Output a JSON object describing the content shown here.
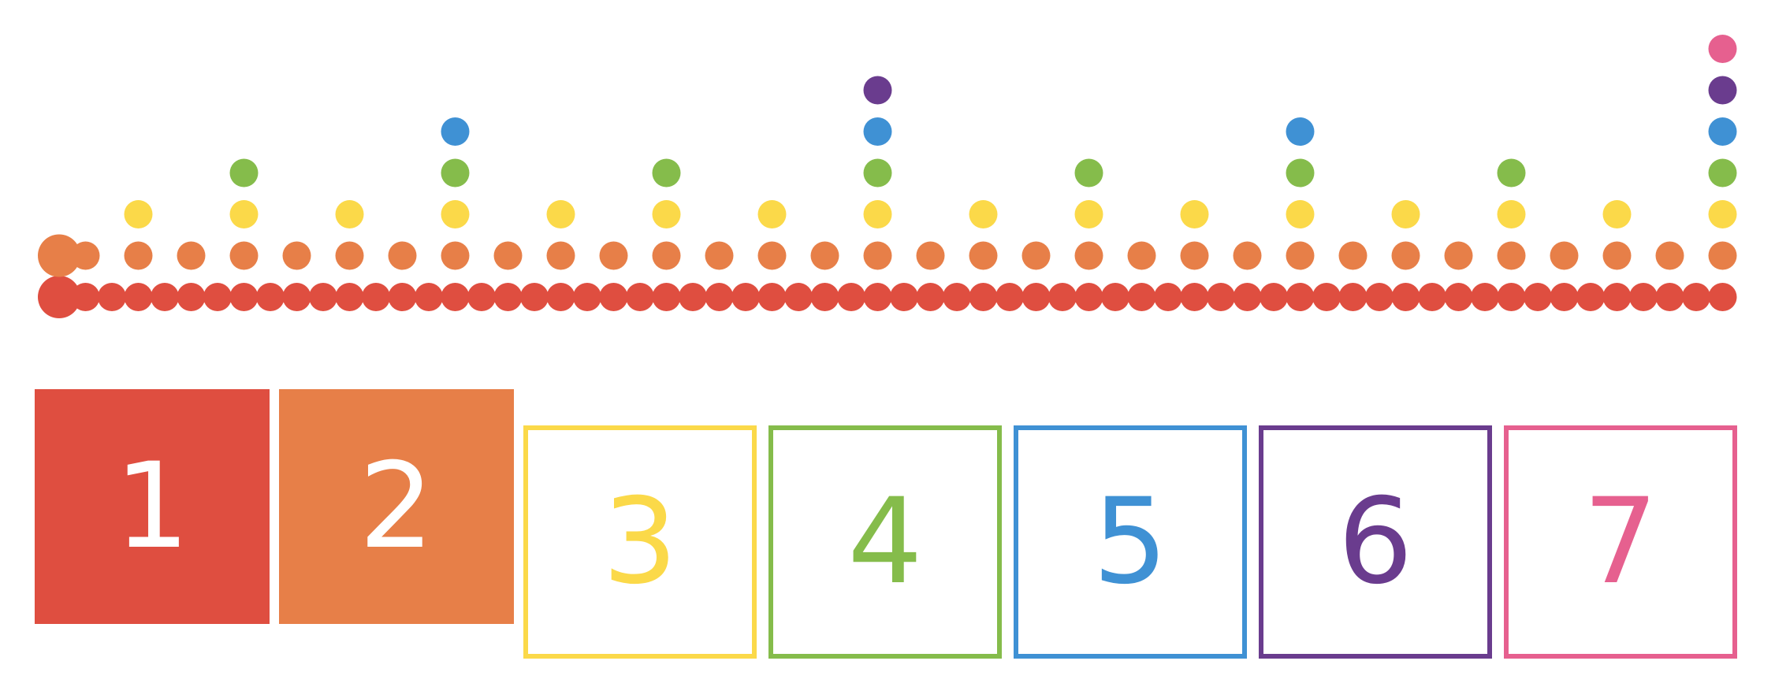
{
  "tiles": [
    {
      "label": "1",
      "color": "#df4e40",
      "style": "filled"
    },
    {
      "label": "2",
      "color": "#e77f48",
      "style": "filled"
    },
    {
      "label": "3",
      "color": "#fbd949",
      "style": "outline"
    },
    {
      "label": "4",
      "color": "#85bc4b",
      "style": "outline"
    },
    {
      "label": "5",
      "color": "#3f91d4",
      "style": "outline"
    },
    {
      "label": "6",
      "color": "#6a3c8e",
      "style": "outline"
    },
    {
      "label": "7",
      "color": "#e6608f",
      "style": "outline"
    }
  ],
  "dot_rows": [
    {
      "level": 1,
      "color": "#df4e40",
      "count": 64
    },
    {
      "level": 2,
      "color": "#e77f48",
      "count": 32
    },
    {
      "level": 3,
      "color": "#fbd949",
      "count": 16
    },
    {
      "level": 4,
      "color": "#85bc4b",
      "count": 8
    },
    {
      "level": 5,
      "color": "#3f91d4",
      "count": 4
    },
    {
      "level": 6,
      "color": "#6a3c8e",
      "count": 2
    },
    {
      "level": 7,
      "color": "#e6608f",
      "count": 1
    }
  ]
}
